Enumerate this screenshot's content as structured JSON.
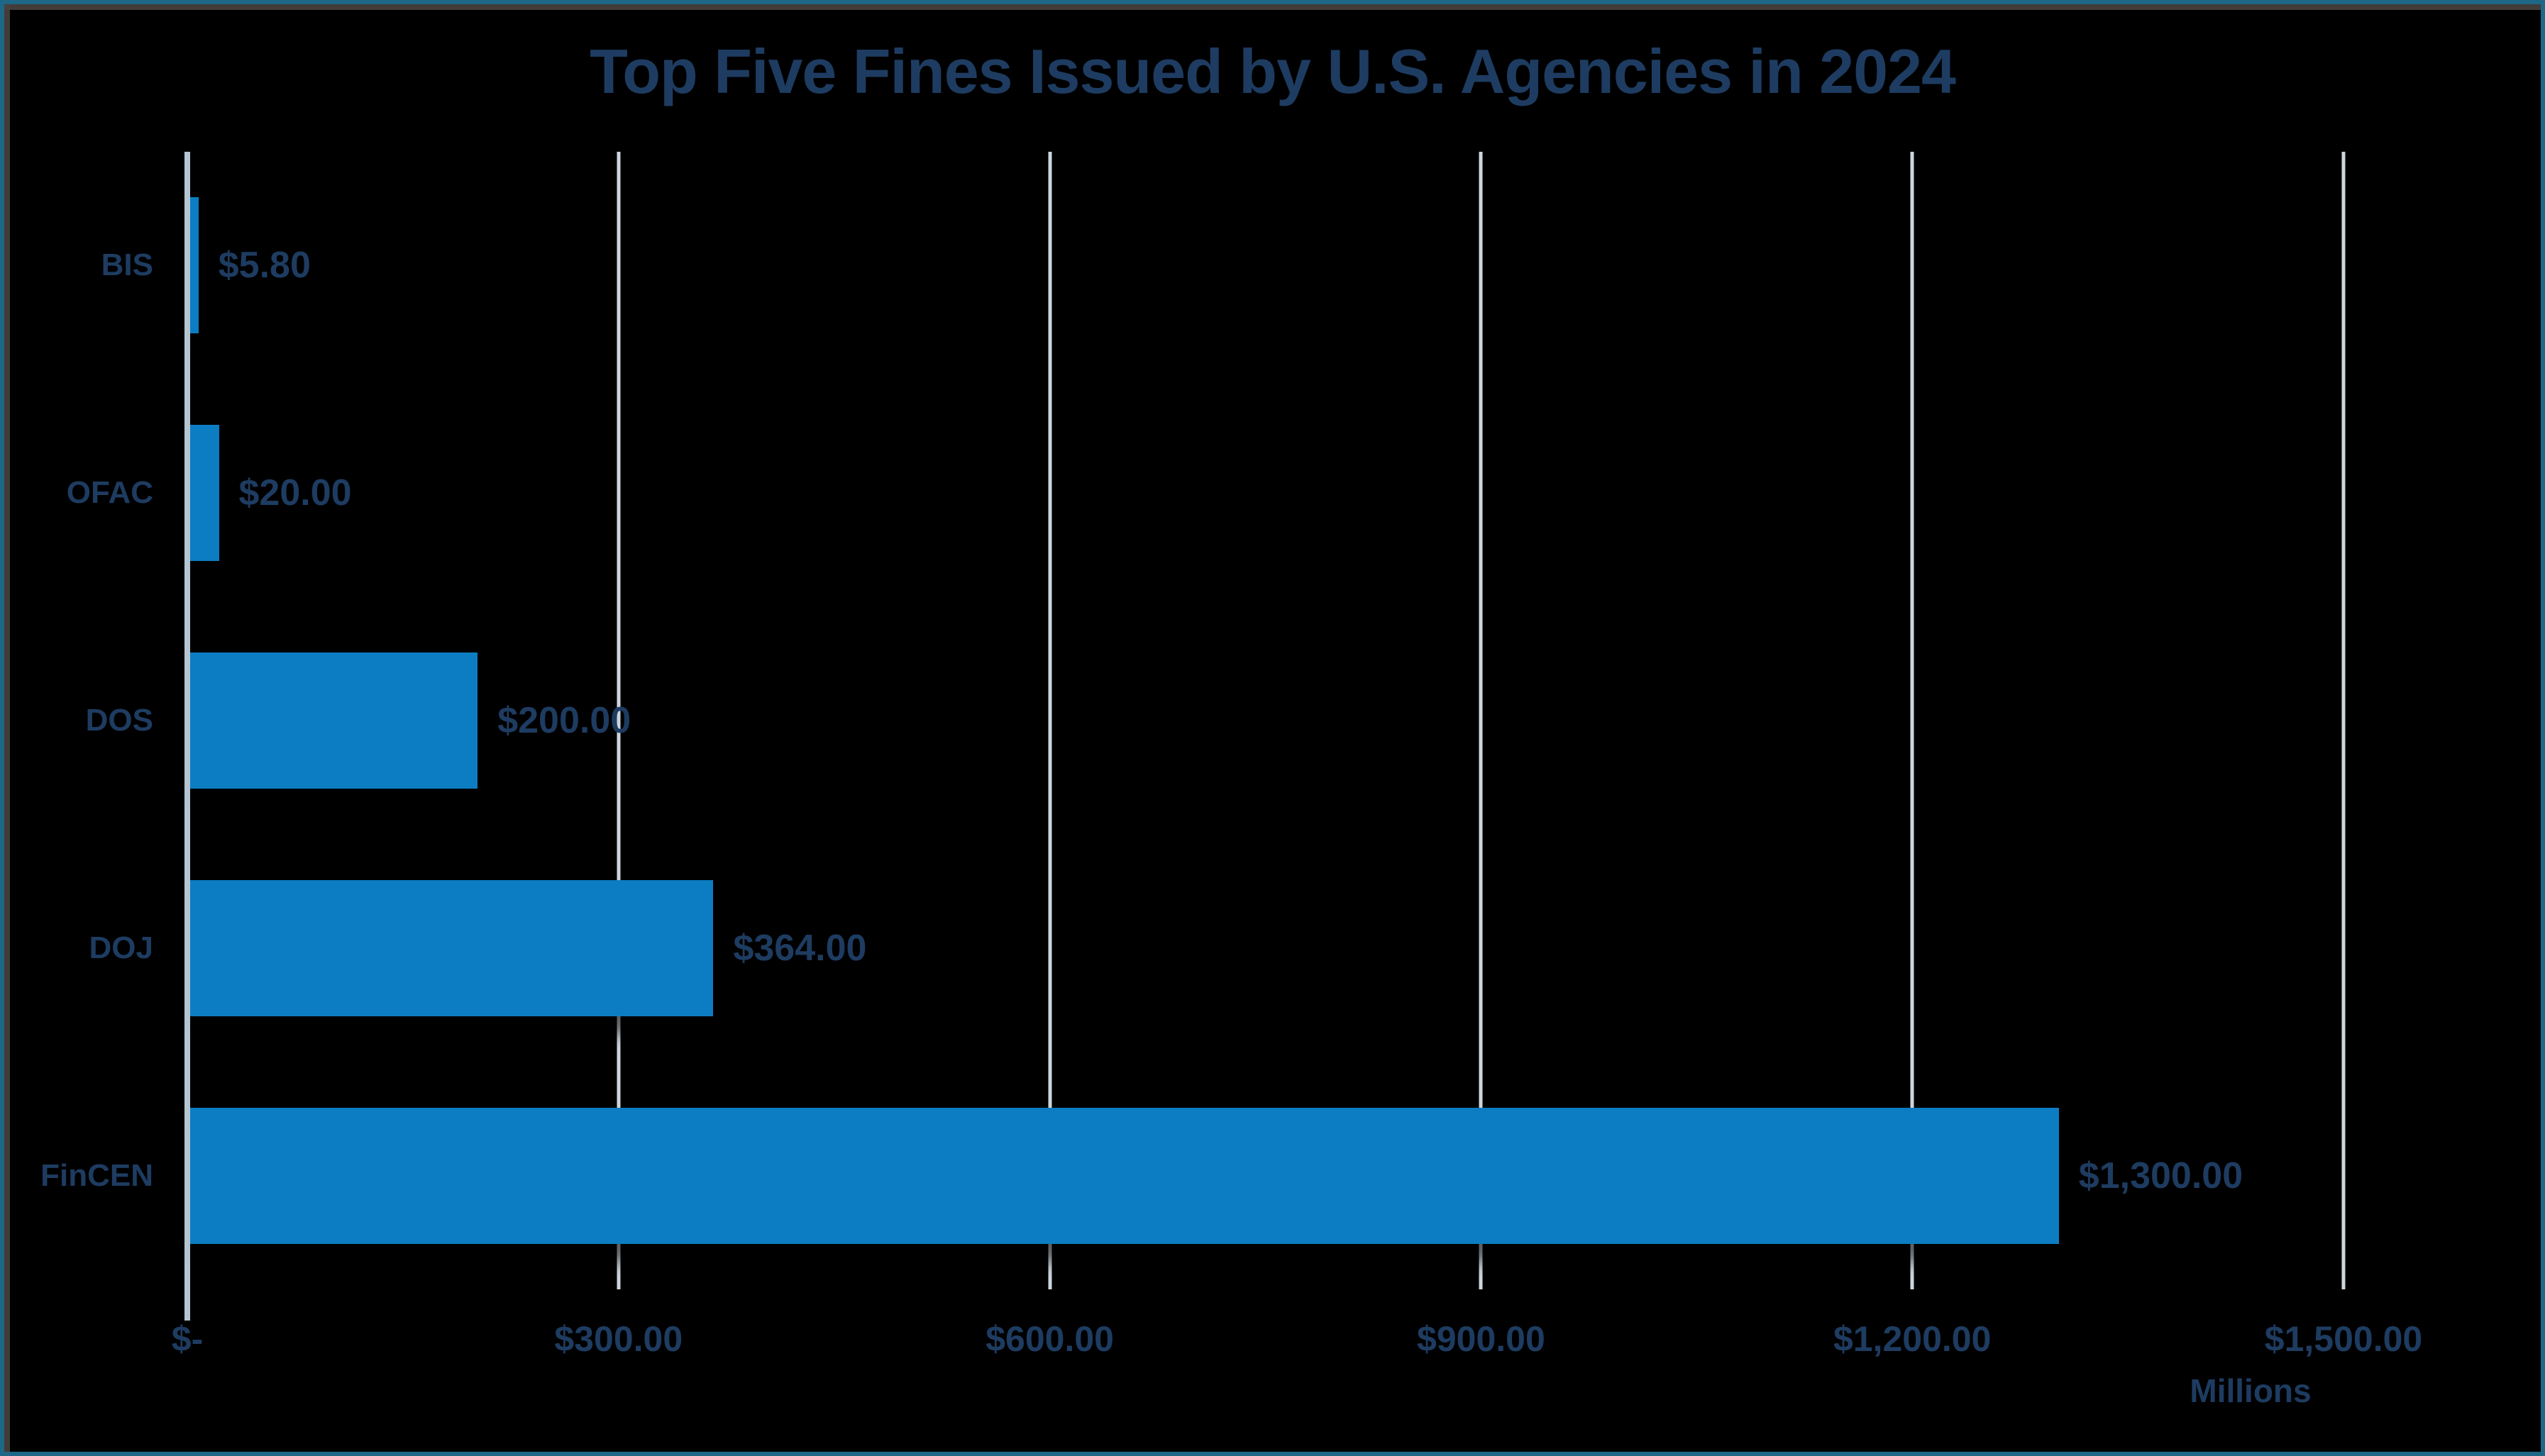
{
  "chart_data": {
    "type": "bar",
    "orientation": "horizontal",
    "title": "Top Five Fines Issued by U.S. Agencies in 2024",
    "categories": [
      "BIS",
      "OFAC",
      "DOS",
      "DOJ",
      "FinCEN"
    ],
    "values": [
      5.8,
      20,
      200,
      364,
      1300
    ],
    "data_labels": [
      "$5.80",
      "$20.00",
      "$200.00",
      "$364.00",
      "$1,300.00"
    ],
    "x_ticks": [
      {
        "value": 0,
        "label": "$-"
      },
      {
        "value": 300,
        "label": "$300.00"
      },
      {
        "value": 600,
        "label": "$600.00"
      },
      {
        "value": 900,
        "label": "$900.00"
      },
      {
        "value": 1200,
        "label": "$1,200.00"
      },
      {
        "value": 1500,
        "label": "$1,500.00"
      }
    ],
    "xlim": [
      0,
      1500
    ],
    "xlabel": "Millions",
    "ylabel": "",
    "grid": true,
    "legend": false,
    "colors": {
      "bar": "#0c7dc2",
      "text": "#1e3c61",
      "gridline": "#cdd6de",
      "axis_line": "#b6c5d2",
      "frame_border": "#1e6787",
      "background": "#000000"
    }
  }
}
